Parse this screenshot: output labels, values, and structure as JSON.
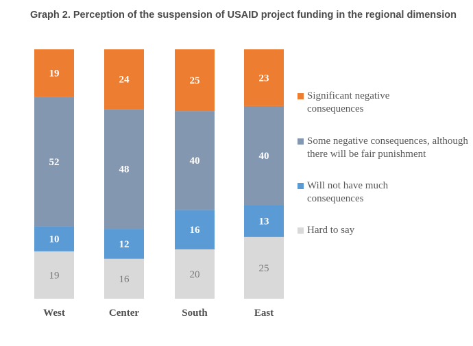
{
  "chart_data": {
    "type": "bar",
    "stacked": true,
    "orientation": "vertical",
    "title": "Graph 2. Perception of the suspension of USAID project funding in the regional dimension",
    "xlabel": "",
    "ylabel": "",
    "ylim": [
      0,
      100
    ],
    "grid": false,
    "legend_position": "right",
    "categories": [
      "West",
      "Center",
      "South",
      "East"
    ],
    "series": [
      {
        "name": "Hard to say",
        "color": "#d9d9d9",
        "label_color": "#7a7a7a",
        "values": [
          19,
          16,
          20,
          25
        ]
      },
      {
        "name": "Will not have much consequences",
        "color": "#5b9bd5",
        "label_color": "#ffffff",
        "values": [
          10,
          12,
          16,
          13
        ]
      },
      {
        "name": "Some negative consequences, although there will be fair punishment",
        "color": "#8497b0",
        "label_color": "#ffffff",
        "values": [
          52,
          48,
          40,
          40
        ]
      },
      {
        "name": "Significant negative consequences",
        "color": "#ed7d31",
        "label_color": "#ffffff",
        "values": [
          19,
          24,
          25,
          23
        ]
      }
    ],
    "legend": [
      {
        "name": "Significant negative consequences",
        "color": "#ed7d31"
      },
      {
        "name": "Some negative consequences, although there will be fair punishment",
        "color": "#8497b0"
      },
      {
        "name": "Will not have much consequences",
        "color": "#5b9bd5"
      },
      {
        "name": "Hard to say",
        "color": "#d9d9d9"
      }
    ]
  }
}
